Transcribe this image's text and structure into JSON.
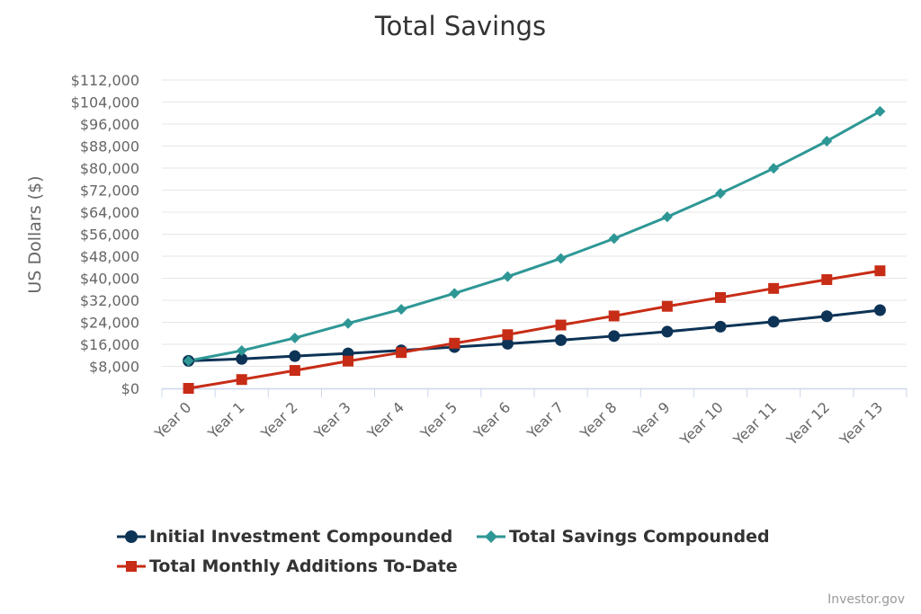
{
  "chart_data": {
    "type": "line",
    "title": "Total Savings",
    "ylabel": "US Dollars ($)",
    "xlabel": "",
    "categories": [
      "Year 0",
      "Year 1",
      "Year 2",
      "Year 3",
      "Year 4",
      "Year 5",
      "Year 6",
      "Year 7",
      "Year 8",
      "Year 9",
      "Year 10",
      "Year 11",
      "Year 12",
      "Year 13"
    ],
    "ylim": [
      0,
      112000
    ],
    "y_ticks": [
      "$0",
      "$8,000",
      "$16,000",
      "$24,000",
      "$32,000",
      "$40,000",
      "$48,000",
      "$56,000",
      "$64,000",
      "$72,000",
      "$80,000",
      "$88,000",
      "$96,000",
      "$104,000",
      "$112,000"
    ],
    "grid": true,
    "legend_position": "bottom",
    "series": [
      {
        "name": "Initial Investment Compounded",
        "color": "#0d3356",
        "marker": "circle",
        "values": [
          10000,
          10700,
          11700,
          12700,
          13800,
          15000,
          16200,
          17500,
          19000,
          20600,
          22400,
          24200,
          26200,
          28400
        ]
      },
      {
        "name": "Total Savings Compounded",
        "color": "#2e9795",
        "marker": "diamond",
        "values": [
          10000,
          13700,
          18300,
          23600,
          28700,
          34500,
          40600,
          47200,
          54400,
          62300,
          70800,
          79900,
          89800,
          100600
        ]
      },
      {
        "name": "Total Monthly Additions To-Date",
        "color": "#c72c16",
        "marker": "square",
        "values": [
          0,
          3200,
          6500,
          9900,
          13000,
          16400,
          19500,
          23000,
          26300,
          29800,
          33000,
          36300,
          39500,
          42700
        ]
      }
    ]
  },
  "credits": "Investor.gov"
}
